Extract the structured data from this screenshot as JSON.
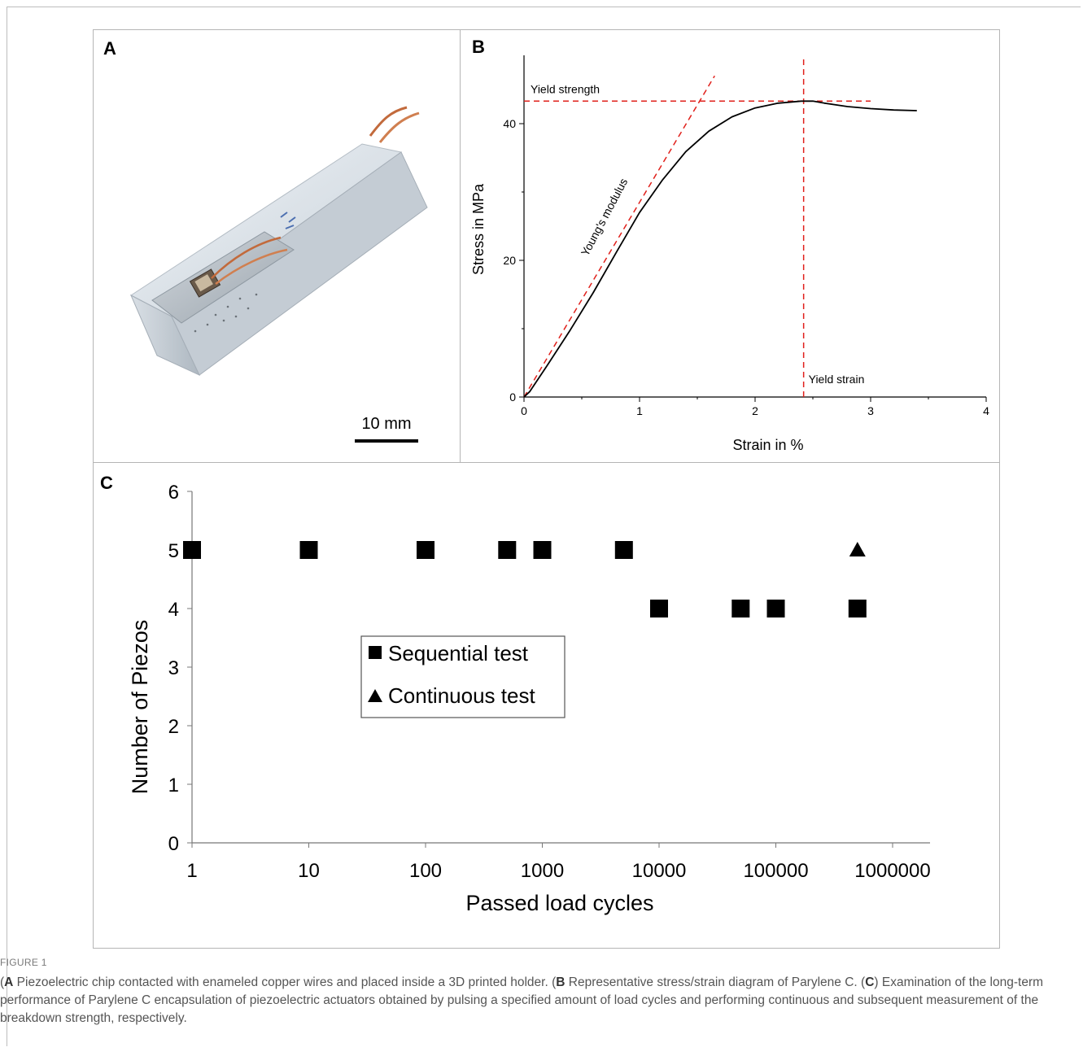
{
  "panels": {
    "a": {
      "letter": "A",
      "scale_bar_label": "10 mm"
    },
    "b": {
      "letter": "B"
    },
    "c": {
      "letter": "C"
    }
  },
  "chart_data": [
    {
      "type": "line",
      "panel": "B",
      "xlabel": "Strain in %",
      "ylabel": "Stress in MPa",
      "xlim": [
        0,
        4
      ],
      "ylim": [
        0,
        50
      ],
      "xticks": [
        0,
        1,
        2,
        3,
        4
      ],
      "yticks": [
        0,
        20,
        40
      ],
      "grid": false,
      "series": [
        {
          "color": "#000000",
          "x": [
            0,
            0.05,
            0.2,
            0.4,
            0.6,
            0.8,
            1.0,
            1.2,
            1.4,
            1.6,
            1.8,
            2.0,
            2.2,
            2.4,
            2.5,
            2.6,
            2.8,
            3.0,
            3.2,
            3.4
          ],
          "y": [
            0,
            0.8,
            4.6,
            9.8,
            15.3,
            21.2,
            27.0,
            31.8,
            35.9,
            38.9,
            41.0,
            42.3,
            43.0,
            43.3,
            43.3,
            43.0,
            42.5,
            42.2,
            42.0,
            41.9
          ]
        }
      ],
      "annotations": [
        {
          "text": "Yield strength",
          "kind": "hline",
          "y": 43.3,
          "x_range": [
            0,
            3.0
          ],
          "color": "#e0201b"
        },
        {
          "text": "Yield strain",
          "kind": "vline",
          "x": 2.42,
          "y_range": [
            0,
            50
          ],
          "color": "#e0201b"
        },
        {
          "text": "Young's modulus",
          "kind": "tangent",
          "from": [
            0,
            0
          ],
          "to": [
            1.65,
            47.0
          ],
          "color": "#e0201b"
        }
      ]
    },
    {
      "type": "scatter",
      "panel": "C",
      "xlabel": "Passed load cycles",
      "ylabel": "Number of Piezos",
      "xscale": "log",
      "xlim": [
        1,
        1000000
      ],
      "ylim": [
        0,
        6
      ],
      "xticks": [
        "1",
        "10",
        "100",
        "1000",
        "10000",
        "100000",
        "1000000"
      ],
      "yticks": [
        0,
        1,
        2,
        3,
        4,
        5,
        6
      ],
      "legend_position": "center-left",
      "series": [
        {
          "name": "Sequential test",
          "marker": "square",
          "x": [
            1,
            10,
            100,
            500,
            1000,
            5000,
            10000,
            50000,
            100000,
            500000
          ],
          "y": [
            5,
            5,
            5,
            5,
            5,
            5,
            4,
            4,
            4,
            4
          ]
        },
        {
          "name": "Continuous test",
          "marker": "triangle",
          "x": [
            500000
          ],
          "y": [
            5
          ]
        }
      ]
    }
  ],
  "caption": {
    "label": "FIGURE 1",
    "parts": [
      {
        "letter": "A",
        "text": " Piezoelectric chip contacted with enameled copper wires and placed inside a 3D printed holder. ("
      },
      {
        "letter": "B",
        "text": " Representative stress/strain diagram of Parylene C. ("
      },
      {
        "letter": "C",
        "text": " Examination of the long-term performance of Parylene C encapsulation of piezoelectric actuators obtained by pulsing a specified amount of load cycles and performing continuous and subsequent measurement of the breakdown strength, respectively."
      }
    ]
  }
}
